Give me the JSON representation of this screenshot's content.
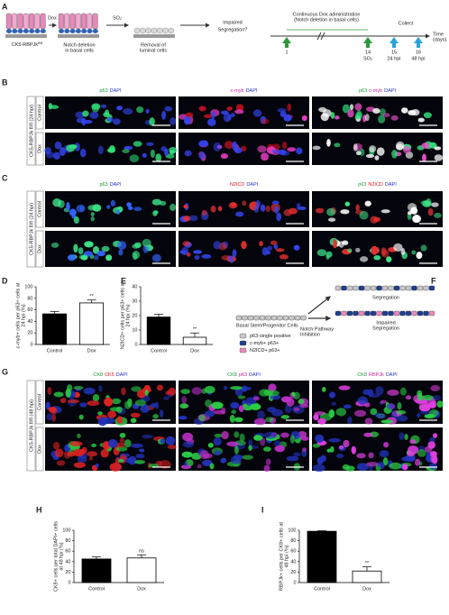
{
  "panels": {
    "A": {
      "label": "A",
      "dox": "Dox",
      "so2": "SO₂",
      "genotype": "CK5-RBPJk",
      "genotype_sup": "fl/fl",
      "step2": [
        "Notch deletion",
        "in basal cells"
      ],
      "step3": [
        "Removal of",
        "luminal cells"
      ],
      "question": [
        "Impaired",
        "Segregation?"
      ],
      "timeline": {
        "heading": [
          "Continuous Dox administration",
          "(Notch deletion in basal cells)"
        ],
        "collect": "Collect",
        "unit": [
          "Time",
          "(days)"
        ],
        "days": [
          "1",
          "14",
          "15",
          "16"
        ],
        "notes": [
          null,
          "SO₂",
          "24 hpi",
          "48 hpi"
        ]
      }
    },
    "B": {
      "label": "B",
      "side": "CK5-RBPJk fl/fl (24 hpi)",
      "rows": [
        "Control",
        "Dox"
      ],
      "columns": [
        [
          {
            "text": "p63",
            "color": "#1a9a3a"
          },
          {
            "text": "DAPI",
            "color": "#2233cc"
          }
        ],
        [
          {
            "text": "c-myb",
            "color": "#cc2299"
          },
          {
            "text": "DAPI",
            "color": "#2233cc"
          }
        ],
        [
          {
            "text": "p63",
            "color": "#1a9a3a"
          },
          {
            "text": "c-myb",
            "color": "#cc2299"
          },
          {
            "text": "DAPI",
            "color": "#2233cc"
          }
        ]
      ]
    },
    "C": {
      "label": "C",
      "side": "CK5-RBPJk fl/fl (24 hpi)",
      "rows": [
        "Control",
        "Dox"
      ],
      "columns": [
        [
          {
            "text": "p63",
            "color": "#1a9a3a"
          },
          {
            "text": "DAPI",
            "color": "#2233cc"
          }
        ],
        [
          {
            "text": "N2ICD",
            "color": "#d42020"
          },
          {
            "text": "DAPI",
            "color": "#2233cc"
          }
        ],
        [
          {
            "text": "p63",
            "color": "#1a9a3a"
          },
          {
            "text": "N2ICD",
            "color": "#d42020"
          },
          {
            "text": "DAPI",
            "color": "#2233cc"
          }
        ]
      ]
    },
    "F": {
      "label": "F",
      "source": "Basal Stem/Progenitor Cells",
      "inhibition": [
        "Notch Pathway",
        "Inhibition"
      ],
      "outcome_top": "Segregation",
      "outcome_bottom": [
        "Impaired",
        "Segregation"
      ],
      "legend": [
        {
          "text": "p63-single positive",
          "color": "#c8c8c8"
        },
        {
          "text": "c-myb+ p63+",
          "color": "#1f3f8f"
        },
        {
          "text": "N2ICD+ p63+",
          "color": "#e98ab8"
        }
      ]
    },
    "G": {
      "label": "G",
      "side": "CK5-RBPJk fl/fl (48 hpi)",
      "rows": [
        "Control",
        "Dox"
      ],
      "columns": [
        [
          {
            "text": "CK8",
            "color": "#1a9a3a"
          },
          {
            "text": "CK5",
            "color": "#d42020"
          },
          {
            "text": "DAPI",
            "color": "#2233cc"
          }
        ],
        [
          {
            "text": "CK8",
            "color": "#1a9a3a"
          },
          {
            "text": "p63",
            "color": "#cc2299"
          },
          {
            "text": "DAPI",
            "color": "#2233cc"
          }
        ],
        [
          {
            "text": "CK8",
            "color": "#1a9a3a"
          },
          {
            "text": "RBPJk",
            "color": "#cc2299"
          },
          {
            "text": "DAPI",
            "color": "#2233cc"
          }
        ]
      ]
    }
  },
  "chart_data": [
    {
      "type": "bar",
      "label": "D",
      "ylabel": [
        "c-myb+ cells per p63+ cells at",
        "24 hpi (%)"
      ],
      "categories": [
        "Control",
        "Dox"
      ],
      "values": [
        53,
        72
      ],
      "errors": [
        4,
        5
      ],
      "significance": [
        null,
        "**"
      ],
      "colors": [
        "#000000",
        "#ffffff"
      ],
      "ylim": [
        0,
        100
      ],
      "yticks": [
        0,
        20,
        40,
        60,
        80,
        100
      ]
    },
    {
      "type": "bar",
      "label": "E",
      "ylabel": [
        "N2ICD+ cells per p63+ cells at",
        "24 hpi (%)"
      ],
      "categories": [
        "Control",
        "Dox"
      ],
      "values": [
        19,
        5
      ],
      "errors": [
        2,
        3
      ],
      "significance": [
        null,
        "**"
      ],
      "colors": [
        "#000000",
        "#ffffff"
      ],
      "ylim": [
        0,
        40
      ],
      "yticks": [
        0,
        10,
        20,
        30,
        40
      ]
    },
    {
      "type": "bar",
      "label": "H",
      "ylabel": [
        "CK8+ cells per total DAPI+ cells",
        "at 48 hpi (%)"
      ],
      "categories": [
        "Control",
        "Dox"
      ],
      "values": [
        45,
        47
      ],
      "errors": [
        4,
        6
      ],
      "significance": [
        null,
        "ns"
      ],
      "colors": [
        "#000000",
        "#ffffff"
      ],
      "ylim": [
        0,
        100
      ],
      "yticks": [
        0,
        20,
        40,
        60,
        80,
        100
      ]
    },
    {
      "type": "bar",
      "label": "I",
      "ylabel": [
        "RBPJk+ cells per CK8+ cells at",
        "48 hpi (%)"
      ],
      "categories": [
        "Control",
        "Dox"
      ],
      "values": [
        98,
        22
      ],
      "errors": [
        1,
        8
      ],
      "significance": [
        null,
        "**"
      ],
      "colors": [
        "#000000",
        "#ffffff"
      ],
      "ylim": [
        0,
        100
      ],
      "yticks": [
        0,
        20,
        40,
        60,
        80,
        100
      ]
    }
  ]
}
